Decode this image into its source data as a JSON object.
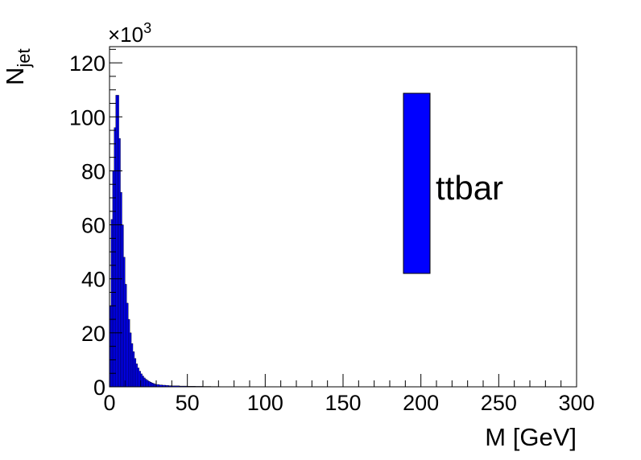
{
  "chart_data": {
    "type": "bar",
    "style": "histogram",
    "xlabel": "M [GeV]",
    "ylabel_main": "N",
    "ylabel_sub": "jet",
    "y_multiplier_base": "×10",
    "y_multiplier_exp": "3",
    "xlim": [
      0,
      300
    ],
    "ylim": [
      0,
      126
    ],
    "x_ticks": [
      "0",
      "50",
      "100",
      "150",
      "200",
      "250",
      "300"
    ],
    "y_ticks": [
      "0",
      "20",
      "40",
      "60",
      "80",
      "100",
      "120"
    ],
    "fill_color": "#0000ff",
    "bin_width": 1,
    "x_bin_low": [
      0,
      1,
      2,
      3,
      4,
      5,
      6,
      7,
      8,
      9,
      10,
      11,
      12,
      13,
      14,
      15,
      16,
      17,
      18,
      19,
      20,
      21,
      22,
      23,
      24,
      25,
      26,
      27,
      28,
      29,
      30,
      32,
      34,
      36,
      38,
      40,
      45,
      50,
      55,
      60,
      65,
      70
    ],
    "values": [
      30,
      62,
      80,
      96,
      108,
      108,
      92,
      72,
      60,
      48,
      38,
      31,
      25,
      20,
      16,
      13,
      10.5,
      8.5,
      7,
      5.8,
      4.8,
      4,
      3.3,
      2.8,
      2.4,
      2,
      1.7,
      1.4,
      1.2,
      1.0,
      0.85,
      0.7,
      0.6,
      0.5,
      0.42,
      0.35,
      0.28,
      0.22,
      0.18,
      0.15,
      0.12,
      0.1
    ],
    "legend": [
      {
        "name": "ttbar",
        "color": "#0000ff"
      }
    ],
    "legend_position": "top-right",
    "grid": false
  }
}
